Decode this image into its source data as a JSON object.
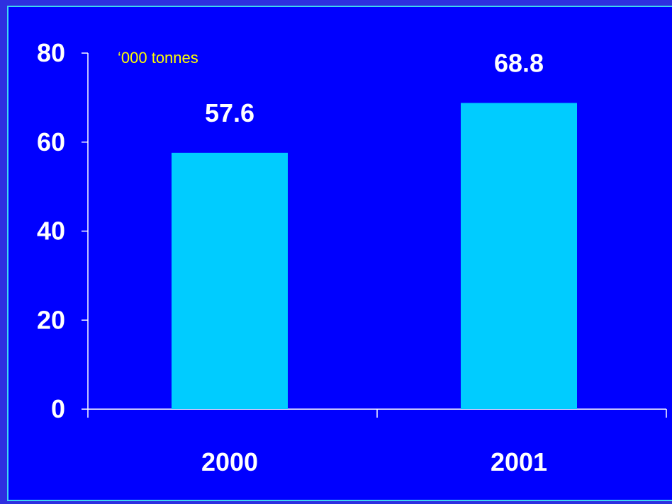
{
  "colors": {
    "background": "#0000ff",
    "frame": "#2f2fe0",
    "border": "#3fd6f0",
    "bar": "#00ccff",
    "text": "#ffffff",
    "unit": "#ffff00"
  },
  "chart_data": {
    "type": "bar",
    "title": "",
    "xlabel": "",
    "ylabel": "",
    "unit_label": "‘000 tonnes",
    "categories": [
      "2000",
      "2001"
    ],
    "values": [
      57.6,
      68.8
    ],
    "value_labels": [
      "57.6",
      "68.8"
    ],
    "ylim": [
      0,
      80
    ],
    "yticks": [
      0,
      20,
      40,
      60,
      80
    ],
    "ytick_labels": [
      "0",
      "20",
      "40",
      "60",
      "80"
    ],
    "grid": false,
    "legend": "none"
  }
}
